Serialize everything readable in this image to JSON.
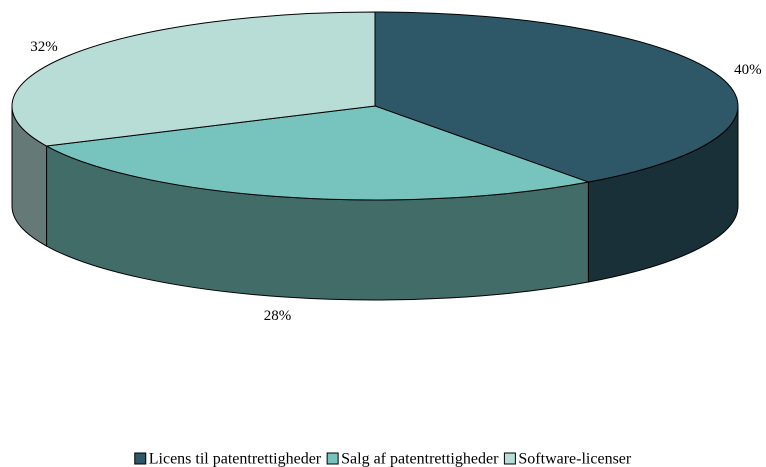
{
  "chart_data": {
    "type": "pie3d",
    "categories": [
      "Licens til patentrettigheder",
      "Salg af patentrettigheder",
      "Software-licenser"
    ],
    "values": [
      40,
      28,
      32
    ],
    "value_labels": [
      "40%",
      "28%",
      "32%"
    ],
    "colors": [
      "#2e5868",
      "#76c4bd",
      "#b7ddd6"
    ],
    "legend": "bottom"
  }
}
